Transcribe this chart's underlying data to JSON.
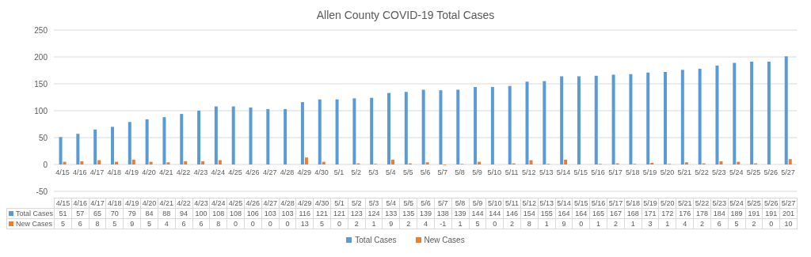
{
  "chart_data": {
    "type": "bar",
    "title": "Allen County COVID-19 Total Cases",
    "categories": [
      "4/15",
      "4/16",
      "4/17",
      "4/18",
      "4/19",
      "4/20",
      "4/21",
      "4/22",
      "4/23",
      "4/24",
      "4/25",
      "4/26",
      "4/27",
      "4/28",
      "4/29",
      "4/30",
      "5/1",
      "5/2",
      "5/3",
      "5/4",
      "5/5",
      "5/6",
      "5/7",
      "5/8",
      "5/9",
      "5/10",
      "5/11",
      "5/12",
      "5/13",
      "5/14",
      "5/15",
      "5/16",
      "5/17",
      "5/18",
      "5/19",
      "5/20",
      "5/21",
      "5/22",
      "5/23",
      "5/24",
      "5/25",
      "5/26",
      "5/27"
    ],
    "series": [
      {
        "name": "Total Cases",
        "color": "#5b9bd5",
        "values": [
          51,
          57,
          65,
          70,
          79,
          84,
          88,
          94,
          100,
          108,
          108,
          106,
          103,
          103,
          116,
          121,
          121,
          123,
          124,
          133,
          135,
          139,
          138,
          139,
          144,
          144,
          146,
          154,
          155,
          164,
          164,
          165,
          167,
          168,
          171,
          172,
          176,
          178,
          184,
          189,
          191,
          191,
          201
        ]
      },
      {
        "name": "New Cases",
        "color": "#ed7d31",
        "values": [
          5,
          6,
          8,
          5,
          9,
          5,
          4,
          6,
          6,
          8,
          0,
          0,
          0,
          0,
          13,
          5,
          0,
          2,
          1,
          9,
          2,
          4,
          -1,
          1,
          5,
          0,
          2,
          8,
          1,
          9,
          0,
          1,
          2,
          1,
          3,
          1,
          4,
          2,
          6,
          5,
          2,
          0,
          10
        ]
      }
    ],
    "ylim": [
      -50,
      250
    ],
    "yticks": [
      -50,
      0,
      50,
      100,
      150,
      200,
      250
    ],
    "grid": "y",
    "legend": "bottom",
    "data_labels": true
  }
}
